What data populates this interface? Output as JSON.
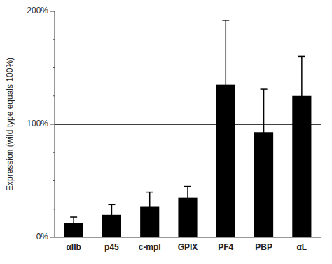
{
  "chart_data": {
    "type": "bar",
    "categories": [
      "αIIb",
      "p45",
      "c-mpl",
      "GPIX",
      "PF4",
      "PBP",
      "αL"
    ],
    "values": [
      13,
      20,
      27,
      35,
      135,
      93,
      125
    ],
    "errors": [
      5,
      9,
      13,
      10,
      57,
      38,
      35
    ],
    "color": "#000000",
    "ylabel": "Expression (wild type equals 100%)",
    "ylim": [
      0,
      200
    ],
    "yticks": [
      {
        "value": 0,
        "label": "0%"
      },
      {
        "value": 100,
        "label": "100%"
      },
      {
        "value": 200,
        "label": "200%"
      }
    ],
    "yticks_minor": [
      25,
      50,
      75,
      125,
      150,
      175
    ],
    "reference_lines": [
      {
        "y": 100,
        "color": "#000000"
      }
    ],
    "grid": false
  }
}
